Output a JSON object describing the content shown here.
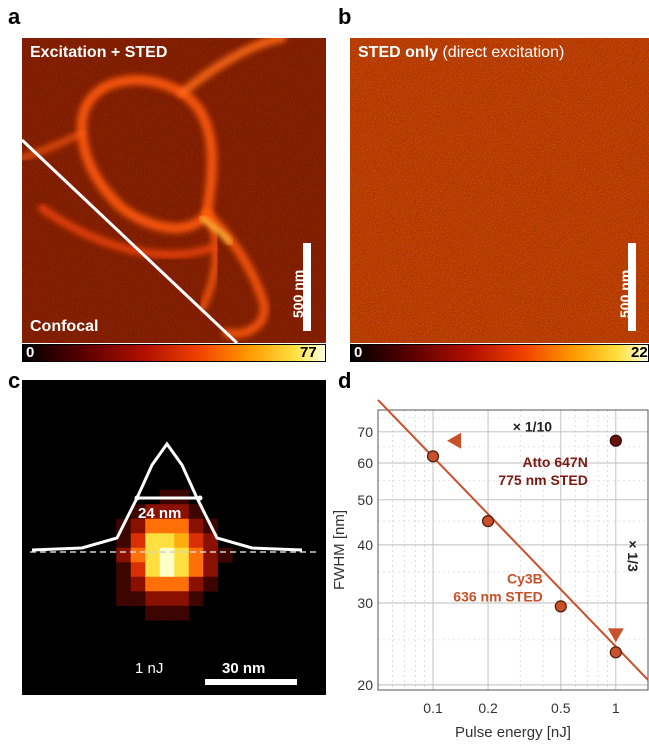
{
  "panels": {
    "a": {
      "letter": "a",
      "top_label": "Excitation + STED",
      "bottom_label": "Confocal",
      "scalebar_label": "500 nm",
      "colorbar_min": "0",
      "colorbar_max": "77"
    },
    "b": {
      "letter": "b",
      "label_bold": "STED only",
      "label_normal": "(direct excitation)",
      "scalebar_label": "500 nm",
      "colorbar_min": "0",
      "colorbar_max": "22"
    },
    "c": {
      "letter": "c",
      "fwhm_label": "24 nm",
      "energy_label": "1 nJ",
      "scalebar_label": "30 nm"
    },
    "d": {
      "letter": "d"
    }
  },
  "colors": {
    "atto": "#7a1a14",
    "cy3b": "#c8502a",
    "fit_line": "#c8502a"
  },
  "chart_data": {
    "type": "scatter",
    "xlabel": "Pulse energy [nJ]",
    "ylabel": "FWHM [nm]",
    "x_scale": "log",
    "y_scale": "log",
    "xlim": [
      0.05,
      1.5
    ],
    "ylim": [
      19.5,
      78
    ],
    "xticks": [
      0.1,
      0.2,
      0.5,
      1
    ],
    "xtick_labels": [
      "0.1",
      "0.2",
      "0.5",
      "1"
    ],
    "yticks": [
      20,
      30,
      40,
      50,
      60,
      70
    ],
    "ytick_labels": [
      "20",
      "30",
      "40",
      "50",
      "60",
      "70"
    ],
    "grid": true,
    "series": [
      {
        "name": "Cy3B\n636 nm STED",
        "x": [
          0.1,
          0.2,
          0.5,
          1
        ],
        "y": [
          62,
          45,
          29.5,
          23.5
        ]
      },
      {
        "name": "Atto 647N\n775 nm STED",
        "x": [
          1
        ],
        "y": [
          67
        ]
      }
    ],
    "fit_line": {
      "x": [
        0.05,
        1.5
      ],
      "y": [
        82,
        20.5
      ]
    },
    "annotations": [
      {
        "text": "× 1/10",
        "from": [
          1,
          67
        ],
        "to": [
          0.1,
          67
        ]
      },
      {
        "text": "× 1/3",
        "from": [
          1,
          67
        ],
        "to": [
          1,
          23.5
        ]
      }
    ]
  }
}
